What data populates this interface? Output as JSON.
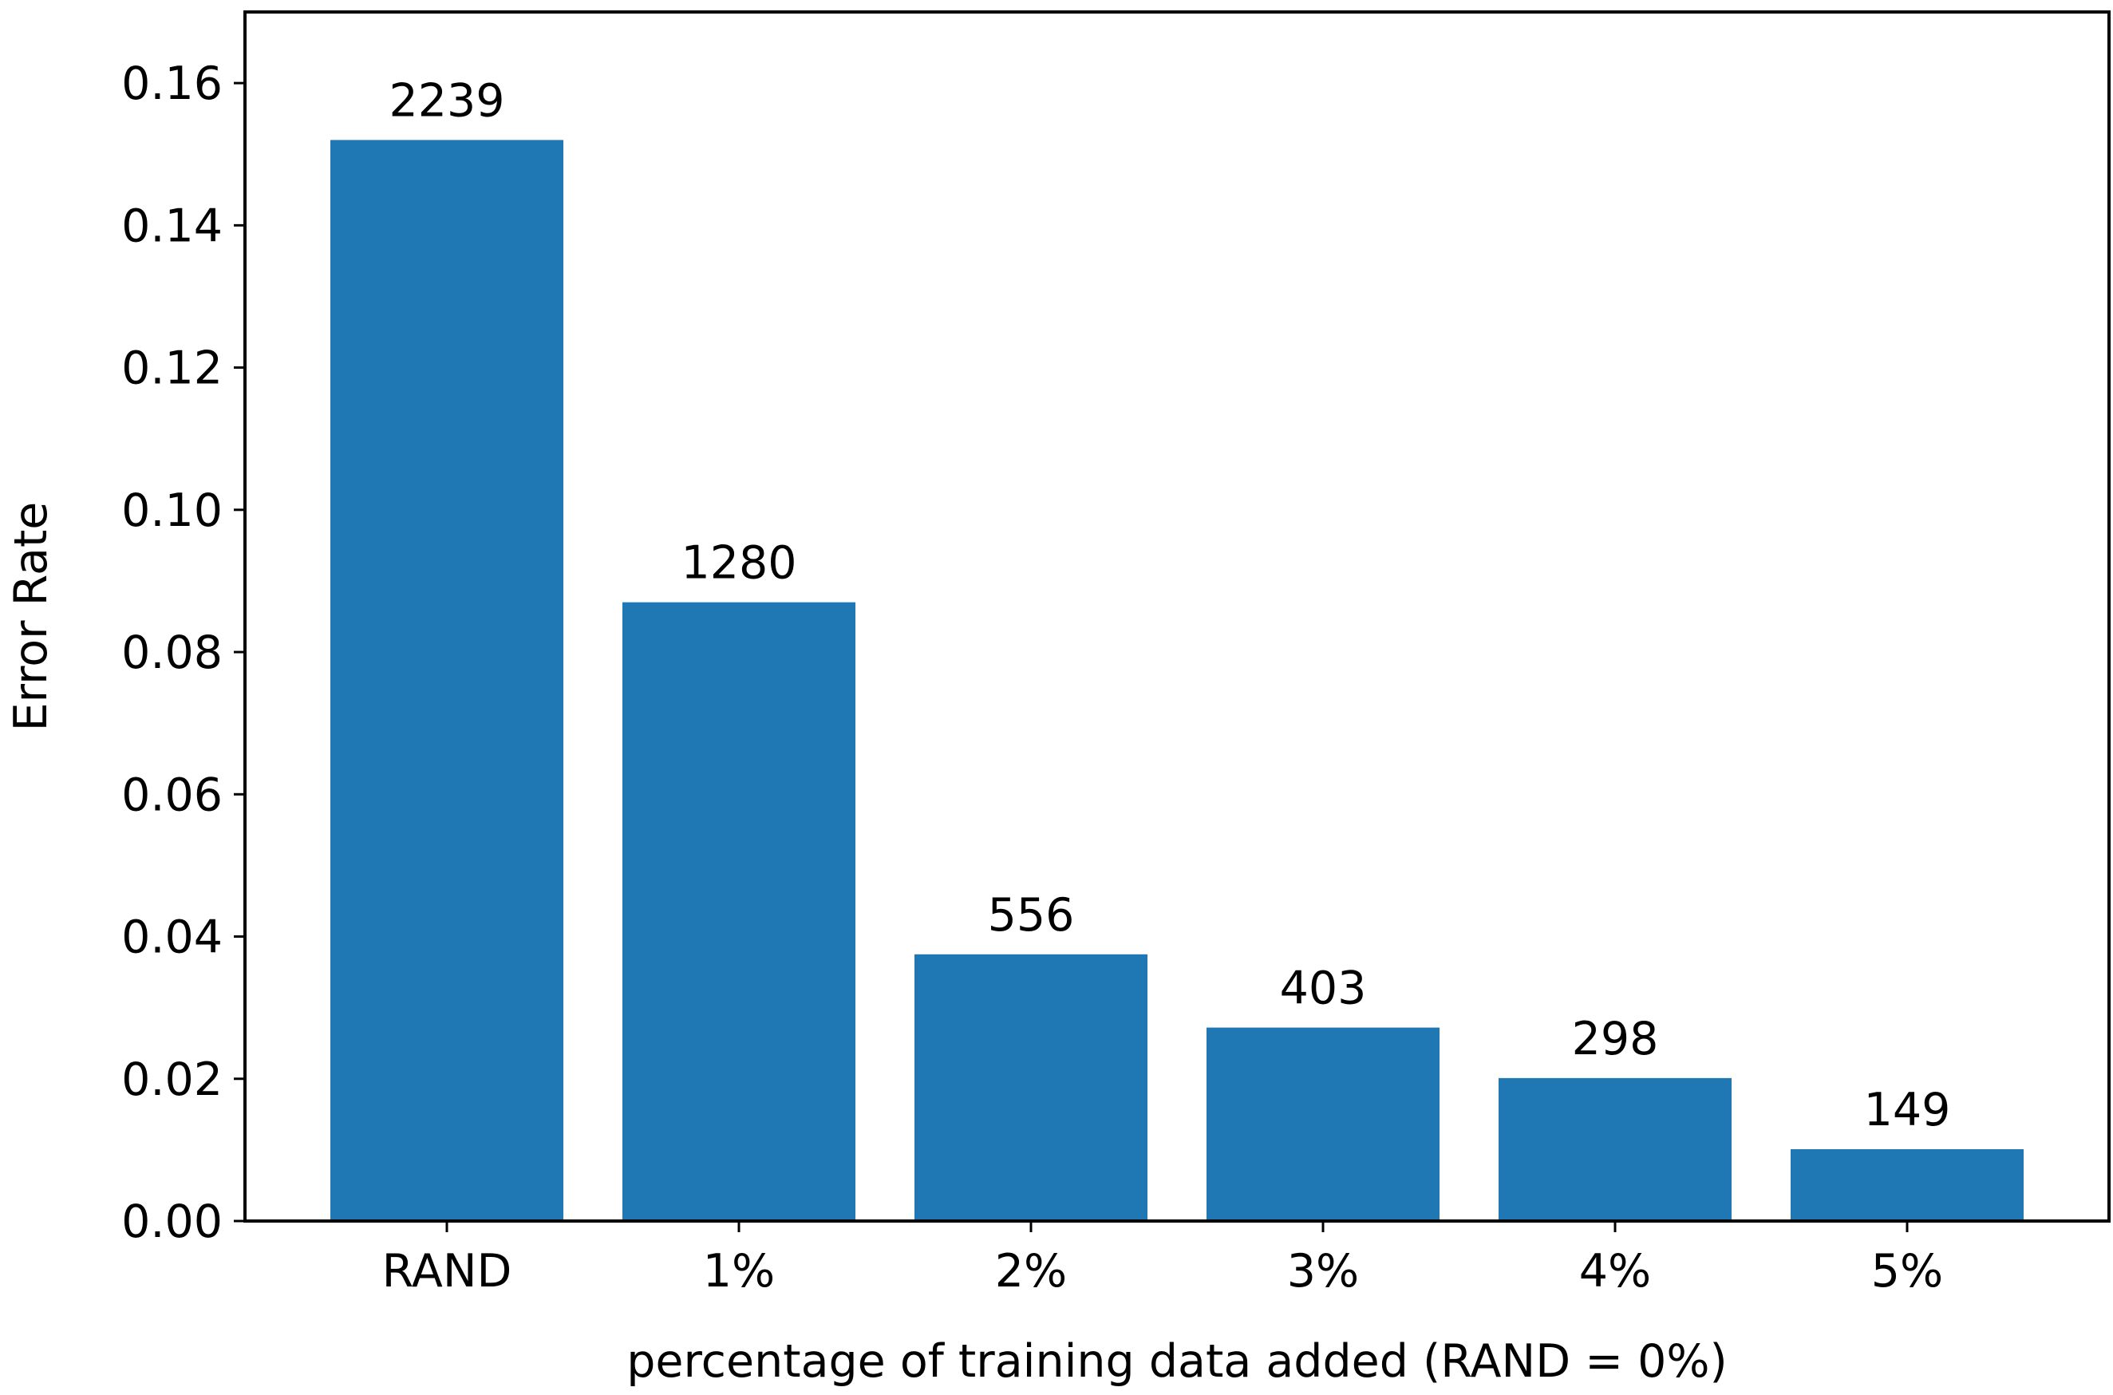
{
  "chart_data": {
    "type": "bar",
    "title": "",
    "xlabel": "percentage of training data added (RAND = 0%)",
    "ylabel": "Error Rate",
    "categories": [
      "RAND",
      "1%",
      "2%",
      "3%",
      "4%",
      "5%"
    ],
    "values": [
      0.152,
      0.087,
      0.0375,
      0.0272,
      0.0201,
      0.0101
    ],
    "bar_labels": [
      "2239",
      "1280",
      "556",
      "403",
      "298",
      "149"
    ],
    "ylim": [
      0,
      0.17
    ],
    "yticks": [
      0.0,
      0.02,
      0.04,
      0.06,
      0.08,
      0.1,
      0.12,
      0.14,
      0.16
    ],
    "ytick_labels": [
      "0.00",
      "0.02",
      "0.04",
      "0.06",
      "0.08",
      "0.10",
      "0.12",
      "0.14",
      "0.16"
    ],
    "grid": false,
    "legend": "none",
    "bar_color": "#1f77b4"
  }
}
